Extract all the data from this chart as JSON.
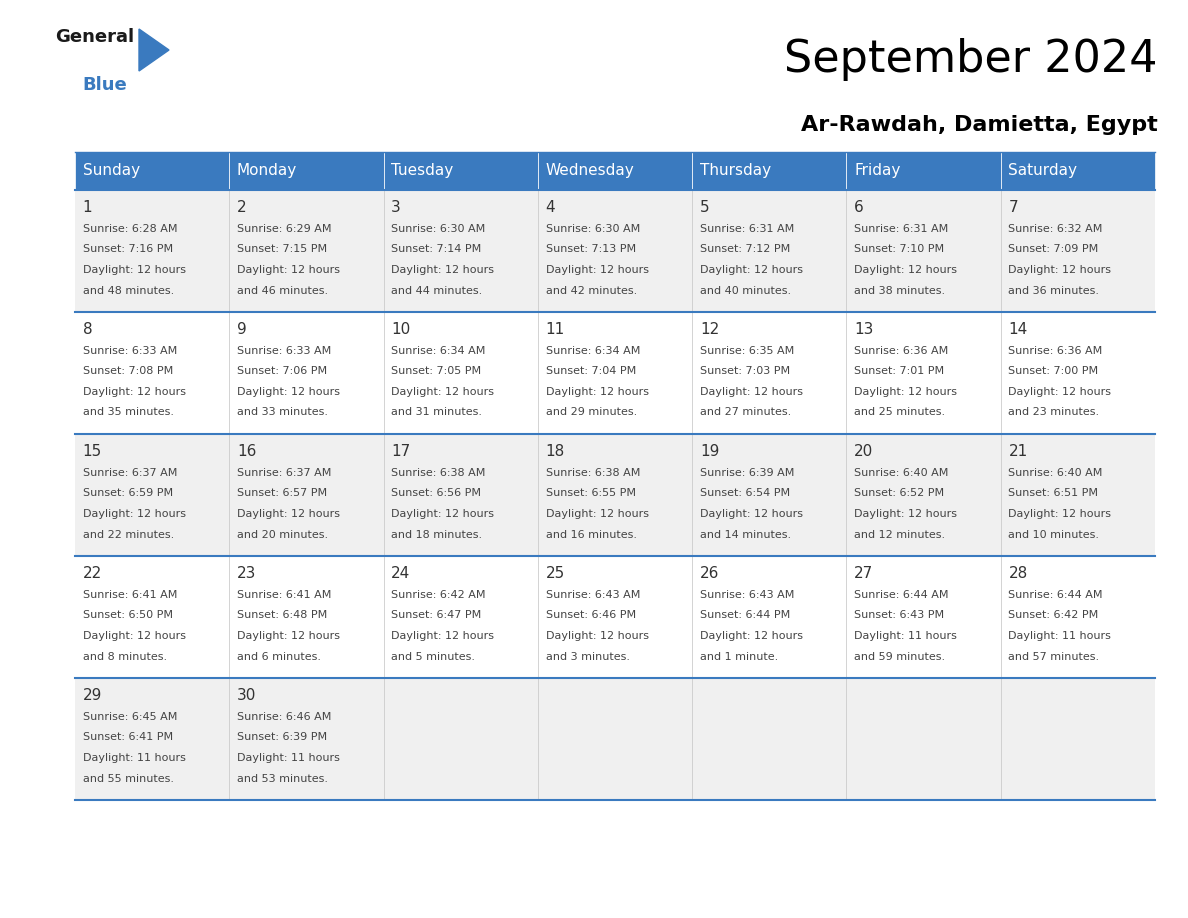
{
  "title": "September 2024",
  "subtitle": "Ar-Rawdah, Damietta, Egypt",
  "days_of_week": [
    "Sunday",
    "Monday",
    "Tuesday",
    "Wednesday",
    "Thursday",
    "Friday",
    "Saturday"
  ],
  "header_bg": "#3a7abf",
  "header_text": "#ffffff",
  "row_bg_odd": "#f0f0f0",
  "row_bg_even": "#ffffff",
  "border_color": "#3a7abf",
  "day_num_color": "#333333",
  "cell_text_color": "#444444",
  "calendar": [
    [
      {
        "day": 1,
        "sunrise": "6:28 AM",
        "sunset": "7:16 PM",
        "daylight": "12 hours and 48 minutes."
      },
      {
        "day": 2,
        "sunrise": "6:29 AM",
        "sunset": "7:15 PM",
        "daylight": "12 hours and 46 minutes."
      },
      {
        "day": 3,
        "sunrise": "6:30 AM",
        "sunset": "7:14 PM",
        "daylight": "12 hours and 44 minutes."
      },
      {
        "day": 4,
        "sunrise": "6:30 AM",
        "sunset": "7:13 PM",
        "daylight": "12 hours and 42 minutes."
      },
      {
        "day": 5,
        "sunrise": "6:31 AM",
        "sunset": "7:12 PM",
        "daylight": "12 hours and 40 minutes."
      },
      {
        "day": 6,
        "sunrise": "6:31 AM",
        "sunset": "7:10 PM",
        "daylight": "12 hours and 38 minutes."
      },
      {
        "day": 7,
        "sunrise": "6:32 AM",
        "sunset": "7:09 PM",
        "daylight": "12 hours and 36 minutes."
      }
    ],
    [
      {
        "day": 8,
        "sunrise": "6:33 AM",
        "sunset": "7:08 PM",
        "daylight": "12 hours and 35 minutes."
      },
      {
        "day": 9,
        "sunrise": "6:33 AM",
        "sunset": "7:06 PM",
        "daylight": "12 hours and 33 minutes."
      },
      {
        "day": 10,
        "sunrise": "6:34 AM",
        "sunset": "7:05 PM",
        "daylight": "12 hours and 31 minutes."
      },
      {
        "day": 11,
        "sunrise": "6:34 AM",
        "sunset": "7:04 PM",
        "daylight": "12 hours and 29 minutes."
      },
      {
        "day": 12,
        "sunrise": "6:35 AM",
        "sunset": "7:03 PM",
        "daylight": "12 hours and 27 minutes."
      },
      {
        "day": 13,
        "sunrise": "6:36 AM",
        "sunset": "7:01 PM",
        "daylight": "12 hours and 25 minutes."
      },
      {
        "day": 14,
        "sunrise": "6:36 AM",
        "sunset": "7:00 PM",
        "daylight": "12 hours and 23 minutes."
      }
    ],
    [
      {
        "day": 15,
        "sunrise": "6:37 AM",
        "sunset": "6:59 PM",
        "daylight": "12 hours and 22 minutes."
      },
      {
        "day": 16,
        "sunrise": "6:37 AM",
        "sunset": "6:57 PM",
        "daylight": "12 hours and 20 minutes."
      },
      {
        "day": 17,
        "sunrise": "6:38 AM",
        "sunset": "6:56 PM",
        "daylight": "12 hours and 18 minutes."
      },
      {
        "day": 18,
        "sunrise": "6:38 AM",
        "sunset": "6:55 PM",
        "daylight": "12 hours and 16 minutes."
      },
      {
        "day": 19,
        "sunrise": "6:39 AM",
        "sunset": "6:54 PM",
        "daylight": "12 hours and 14 minutes."
      },
      {
        "day": 20,
        "sunrise": "6:40 AM",
        "sunset": "6:52 PM",
        "daylight": "12 hours and 12 minutes."
      },
      {
        "day": 21,
        "sunrise": "6:40 AM",
        "sunset": "6:51 PM",
        "daylight": "12 hours and 10 minutes."
      }
    ],
    [
      {
        "day": 22,
        "sunrise": "6:41 AM",
        "sunset": "6:50 PM",
        "daylight": "12 hours and 8 minutes."
      },
      {
        "day": 23,
        "sunrise": "6:41 AM",
        "sunset": "6:48 PM",
        "daylight": "12 hours and 6 minutes."
      },
      {
        "day": 24,
        "sunrise": "6:42 AM",
        "sunset": "6:47 PM",
        "daylight": "12 hours and 5 minutes."
      },
      {
        "day": 25,
        "sunrise": "6:43 AM",
        "sunset": "6:46 PM",
        "daylight": "12 hours and 3 minutes."
      },
      {
        "day": 26,
        "sunrise": "6:43 AM",
        "sunset": "6:44 PM",
        "daylight": "12 hours and 1 minute."
      },
      {
        "day": 27,
        "sunrise": "6:44 AM",
        "sunset": "6:43 PM",
        "daylight": "11 hours and 59 minutes."
      },
      {
        "day": 28,
        "sunrise": "6:44 AM",
        "sunset": "6:42 PM",
        "daylight": "11 hours and 57 minutes."
      }
    ],
    [
      {
        "day": 29,
        "sunrise": "6:45 AM",
        "sunset": "6:41 PM",
        "daylight": "11 hours and 55 minutes."
      },
      {
        "day": 30,
        "sunrise": "6:46 AM",
        "sunset": "6:39 PM",
        "daylight": "11 hours and 53 minutes."
      },
      null,
      null,
      null,
      null,
      null
    ]
  ],
  "logo_general_color": "#1a1a1a",
  "logo_blue_color": "#3a7abf",
  "title_fontsize": 32,
  "subtitle_fontsize": 16,
  "header_fontsize": 11,
  "day_num_fontsize": 11,
  "cell_fontsize": 8
}
